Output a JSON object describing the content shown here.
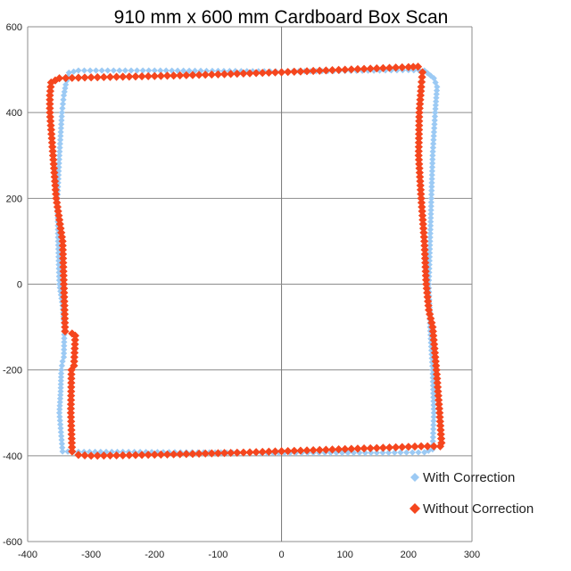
{
  "chart_data": {
    "type": "scatter",
    "title": "910 mm x 600 mm Cardboard Box Scan",
    "xlabel": "",
    "ylabel": "",
    "xlim": [
      -400,
      300
    ],
    "ylim": [
      -600,
      600
    ],
    "x_ticks": [
      -400,
      -300,
      -200,
      -100,
      0,
      100,
      200,
      300
    ],
    "y_ticks": [
      -600,
      -400,
      -200,
      0,
      200,
      400,
      600
    ],
    "grid": true,
    "legend_position": "bottom-right",
    "series": [
      {
        "name": "With Correction",
        "color": "#9ccaf4",
        "marker": "diamond",
        "outline": [
          [
            -340,
            465
          ],
          [
            -335,
            493
          ],
          [
            -320,
            498
          ],
          [
            -200,
            498
          ],
          [
            -100,
            497
          ],
          [
            0,
            496
          ],
          [
            100,
            497
          ],
          [
            200,
            499
          ],
          [
            225,
            498
          ],
          [
            240,
            480
          ],
          [
            245,
            460
          ],
          [
            242,
            400
          ],
          [
            238,
            300
          ],
          [
            236,
            200
          ],
          [
            234,
            100
          ],
          [
            232,
            0
          ],
          [
            234,
            -100
          ],
          [
            238,
            -200
          ],
          [
            240,
            -300
          ],
          [
            238,
            -385
          ],
          [
            225,
            -392
          ],
          [
            150,
            -393
          ],
          [
            50,
            -393
          ],
          [
            -50,
            -393
          ],
          [
            -150,
            -392
          ],
          [
            -250,
            -391
          ],
          [
            -320,
            -391
          ],
          [
            -345,
            -390
          ],
          [
            -350,
            -300
          ],
          [
            -348,
            -250
          ],
          [
            -347,
            -200
          ],
          [
            -345,
            -180
          ],
          [
            -343,
            -170
          ],
          [
            -342,
            -100
          ],
          [
            -345,
            -50
          ],
          [
            -350,
            0
          ],
          [
            -352,
            100
          ],
          [
            -353,
            200
          ],
          [
            -350,
            300
          ],
          [
            -346,
            400
          ],
          [
            -343,
            440
          ],
          [
            -340,
            465
          ]
        ]
      },
      {
        "name": "Without Correction",
        "color": "#f5461e",
        "marker": "diamond",
        "outline": [
          [
            -363,
            470
          ],
          [
            -350,
            480
          ],
          [
            -300,
            482
          ],
          [
            -200,
            485
          ],
          [
            -100,
            489
          ],
          [
            0,
            494
          ],
          [
            100,
            500
          ],
          [
            200,
            506
          ],
          [
            215,
            507
          ],
          [
            222,
            494
          ],
          [
            220,
            460
          ],
          [
            217,
            400
          ],
          [
            216,
            300
          ],
          [
            220,
            200
          ],
          [
            225,
            100
          ],
          [
            228,
            0
          ],
          [
            232,
            -60
          ],
          [
            238,
            -100
          ],
          [
            244,
            -200
          ],
          [
            249,
            -300
          ],
          [
            252,
            -370
          ],
          [
            250,
            -378
          ],
          [
            220,
            -378
          ],
          [
            150,
            -382
          ],
          [
            50,
            -387
          ],
          [
            -50,
            -392
          ],
          [
            -150,
            -396
          ],
          [
            -250,
            -399
          ],
          [
            -300,
            -400
          ],
          [
            -320,
            -398
          ],
          [
            -330,
            -390
          ],
          [
            -332,
            -300
          ],
          [
            -331,
            -200
          ],
          [
            -327,
            -190
          ],
          [
            -325,
            -120
          ],
          [
            -330,
            -115
          ],
          [
            -341,
            -110
          ],
          [
            -343,
            0
          ],
          [
            -345,
            100
          ],
          [
            -355,
            200
          ],
          [
            -360,
            300
          ],
          [
            -365,
            400
          ],
          [
            -365,
            440
          ],
          [
            -363,
            470
          ]
        ]
      }
    ]
  }
}
